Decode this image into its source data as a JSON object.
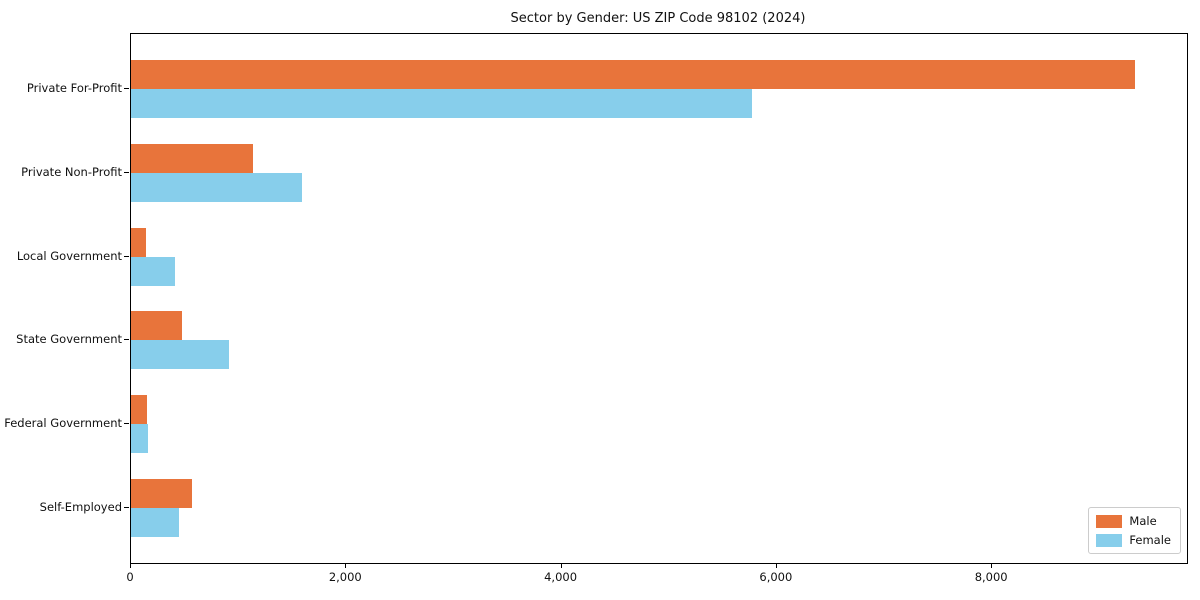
{
  "figure": {
    "background": "#ffffff"
  },
  "chart_data": {
    "type": "bar",
    "orientation": "horizontal",
    "title": "Sector by Gender: US ZIP Code 98102 (2024)",
    "categories": [
      "Private For-Profit",
      "Private Non-Profit",
      "Local Government",
      "State Government",
      "Federal Government",
      "Self-Employed"
    ],
    "series": [
      {
        "name": "Male",
        "color": "#e8743b",
        "values": [
          9330,
          1130,
          140,
          470,
          150,
          570
        ]
      },
      {
        "name": "Female",
        "color": "#87ceeb",
        "values": [
          5770,
          1590,
          410,
          910,
          160,
          450
        ]
      }
    ],
    "xlabel": "",
    "ylabel": "",
    "xlim": [
      0,
      9810
    ],
    "xticks": [
      0,
      2000,
      4000,
      6000,
      8000
    ],
    "xtick_labels": [
      "0",
      "2,000",
      "4,000",
      "6,000",
      "8,000"
    ],
    "grid": false,
    "legend": {
      "position": "lower-right",
      "entries": [
        "Male",
        "Female"
      ]
    },
    "colors": {
      "axis": "#000000",
      "legend_border": "#cccccc"
    }
  }
}
